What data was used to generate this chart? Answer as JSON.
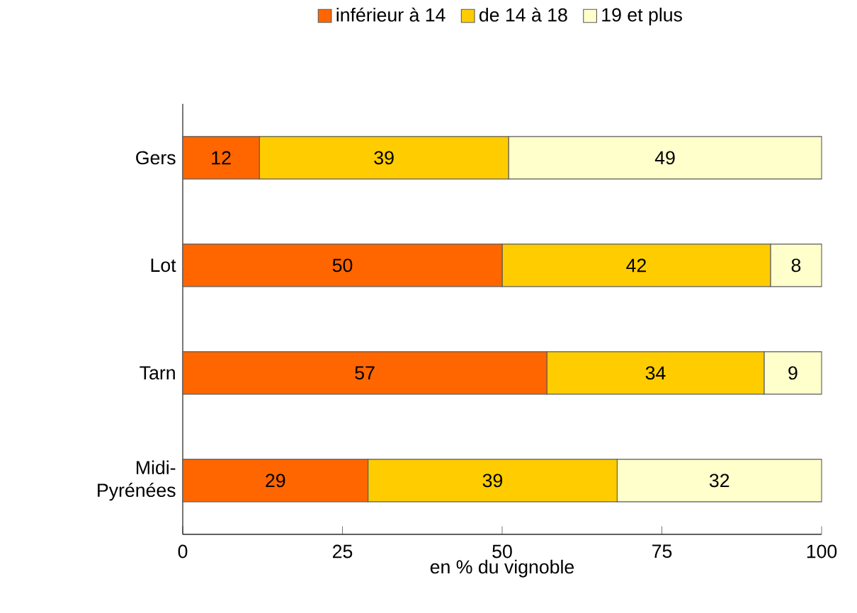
{
  "chart_data": {
    "type": "bar",
    "orientation": "horizontal",
    "stacked": true,
    "data_labels": true,
    "legend": "top",
    "grid": false,
    "xlabel": "en % du vignoble",
    "categories": [
      "Gers",
      "Lot",
      "Tarn",
      "Midi-Pyrénées"
    ],
    "series": [
      {
        "name": "inférieur à 14",
        "color": "#ff6600",
        "values": [
          12,
          50,
          57,
          29
        ]
      },
      {
        "name": "de 14 à 18",
        "color": "#ffcc00",
        "values": [
          39,
          42,
          34,
          39
        ]
      },
      {
        "name": "19 et plus",
        "color": "#ffffcc",
        "values": [
          49,
          8,
          9,
          32
        ]
      }
    ],
    "xlim": [
      0,
      100
    ],
    "xticks": [
      0,
      25,
      50,
      75,
      100
    ]
  }
}
